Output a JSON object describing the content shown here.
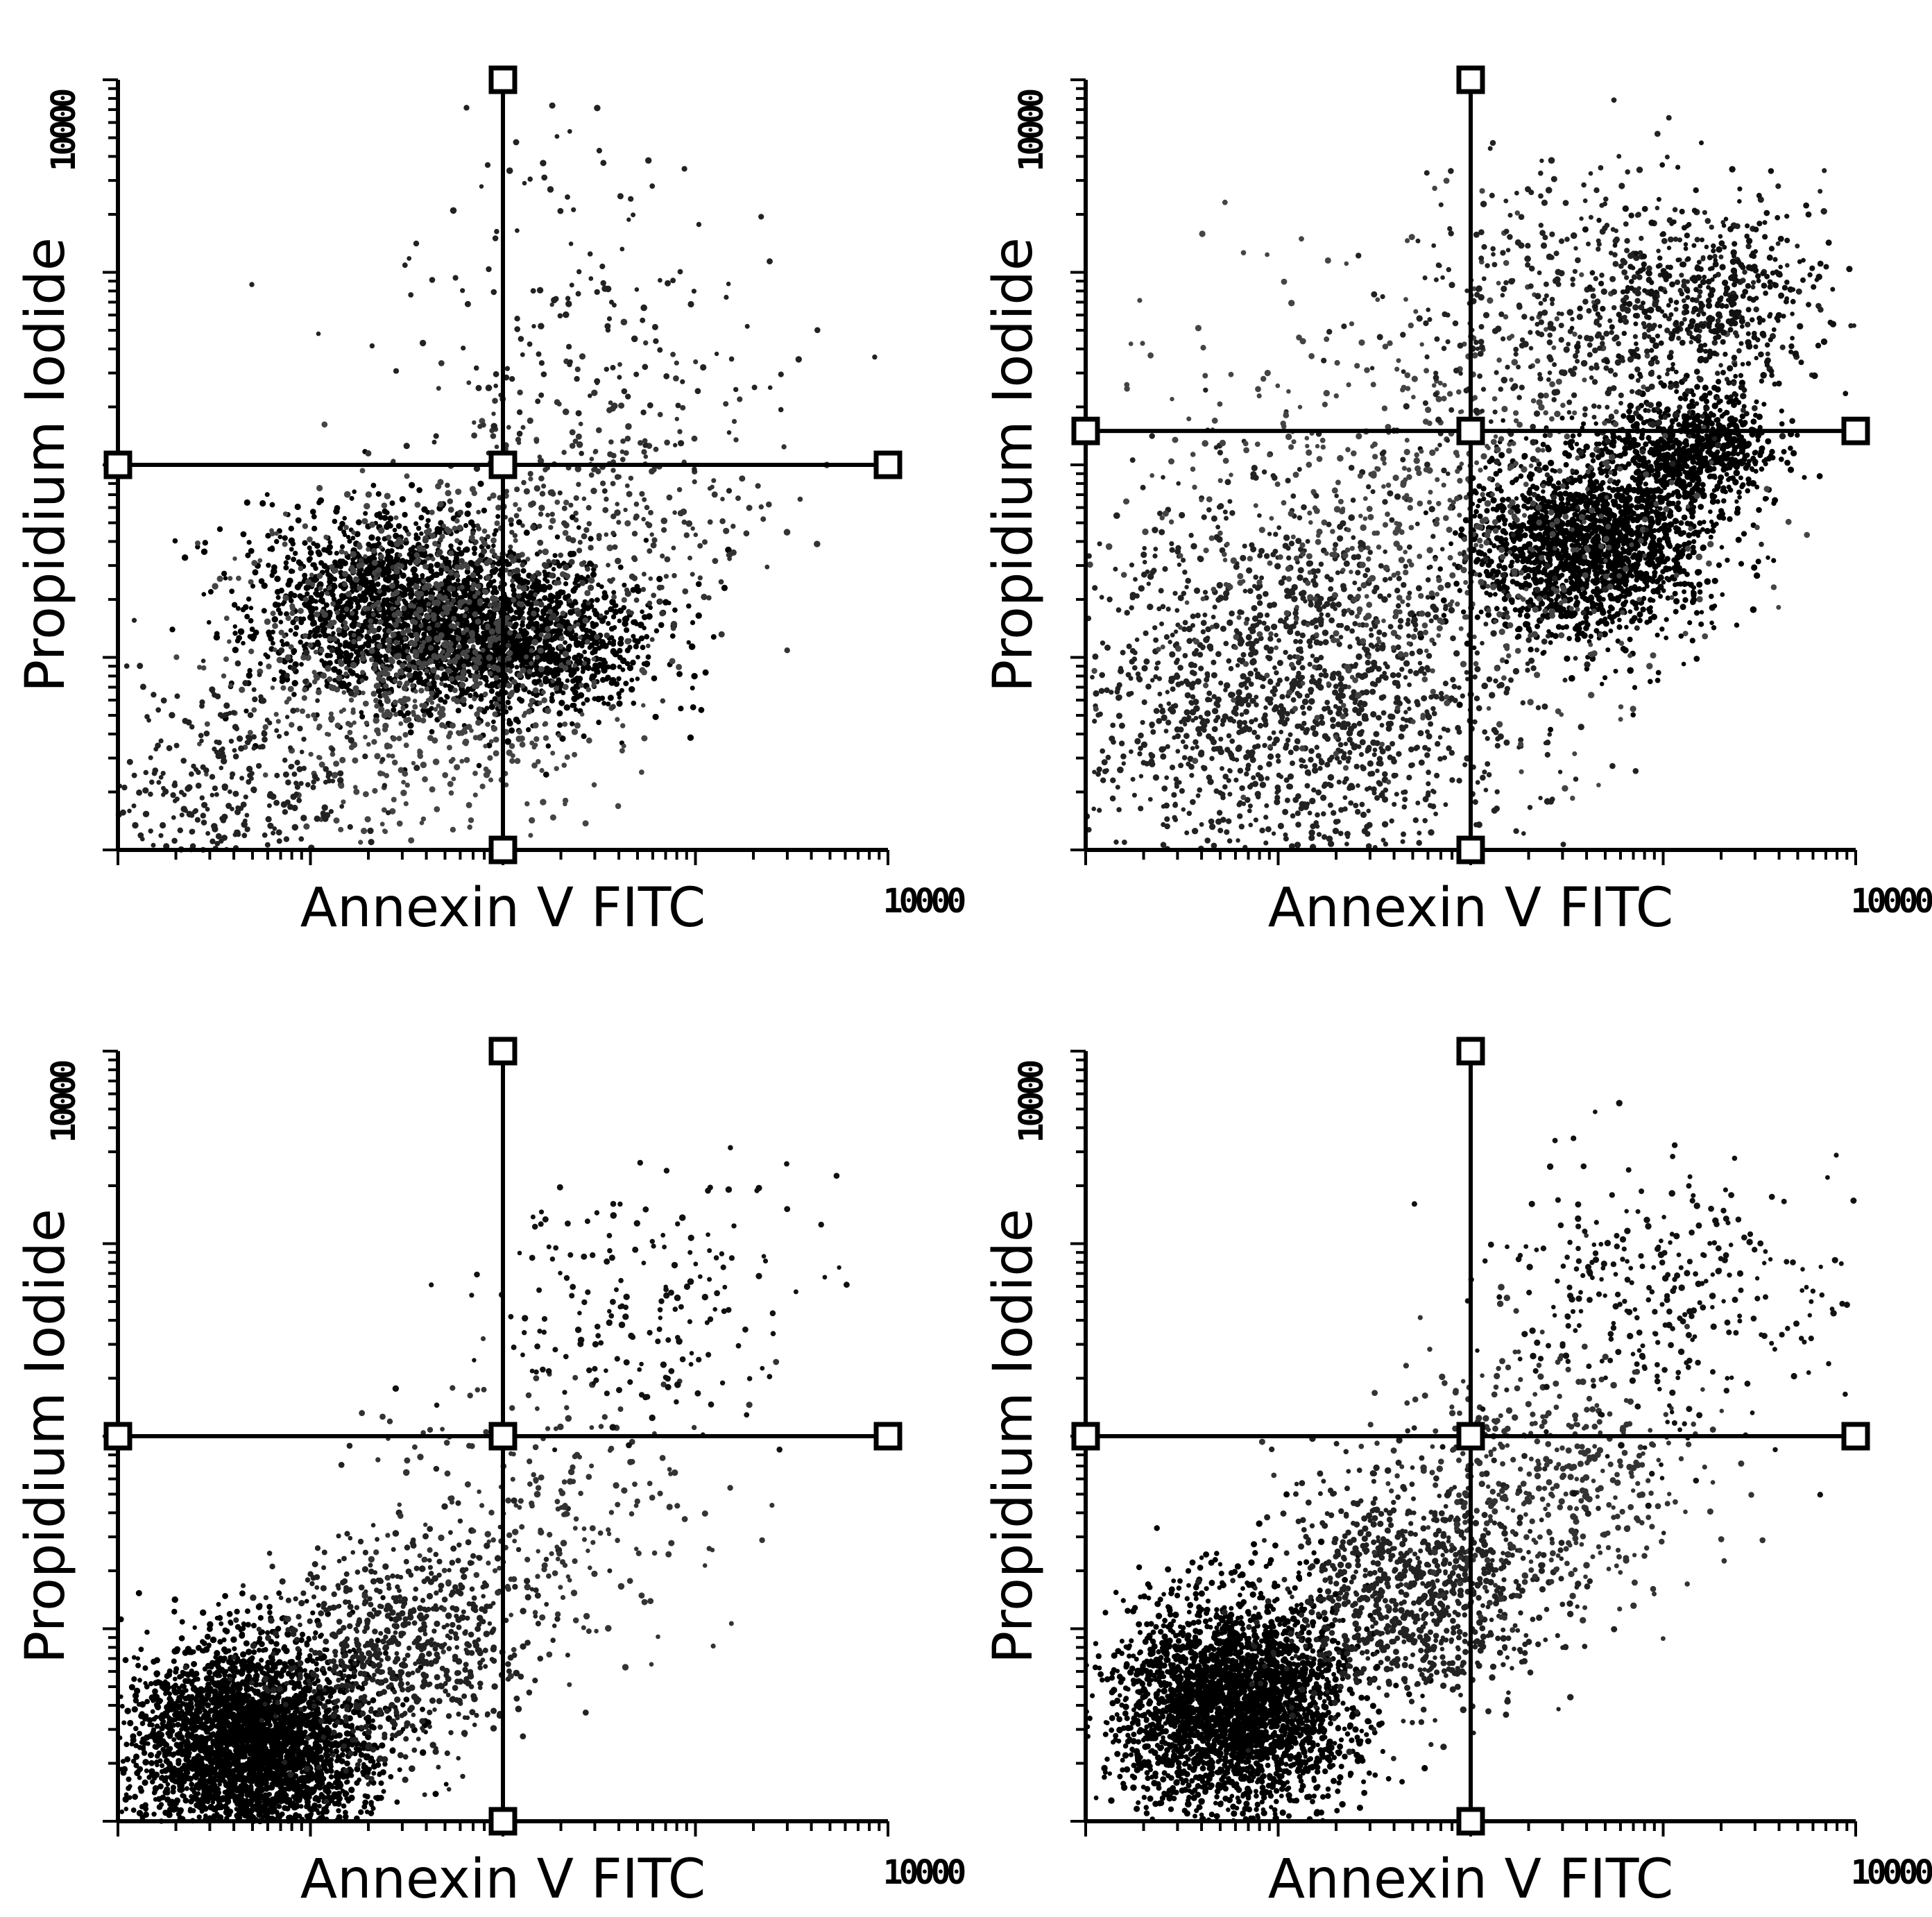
{
  "chart_data": [
    {
      "type": "scatter",
      "panel": "top-left",
      "xlabel": "Annexin V FITC",
      "ylabel": "Propidium Iodide",
      "x_scale": "log",
      "y_scale": "log",
      "xlim": [
        1,
        10000
      ],
      "ylim": [
        1,
        10000
      ],
      "x_tick_label": "10000",
      "y_tick_label": "10000",
      "quadrant_gate": {
        "x": 100,
        "y": 100
      },
      "clusters": [
        {
          "x": 25,
          "y": 18,
          "spread_x": 0.35,
          "spread_y": 0.25,
          "n": 1500,
          "color": "#000000"
        },
        {
          "x": 120,
          "y": 12,
          "spread_x": 0.35,
          "spread_y": 0.2,
          "n": 1300,
          "color": "#000000"
        },
        {
          "x": 40,
          "y": 10,
          "spread_x": 0.45,
          "spread_y": 0.4,
          "n": 900,
          "color": "#444444"
        },
        {
          "x": 4,
          "y": 2,
          "spread_x": 0.35,
          "spread_y": 0.3,
          "n": 350,
          "color": "#222222"
        },
        {
          "x": 300,
          "y": 60,
          "spread_x": 0.45,
          "spread_y": 0.35,
          "n": 350,
          "color": "#333333"
        },
        {
          "x": 250,
          "y": 600,
          "spread_x": 0.6,
          "spread_y": 0.45,
          "n": 160,
          "color": "#222222"
        }
      ]
    },
    {
      "type": "scatter",
      "panel": "top-right",
      "xlabel": "Annexin V FITC",
      "ylabel": "Propidium Iodide",
      "x_scale": "log",
      "y_scale": "log",
      "xlim": [
        1,
        10000
      ],
      "ylim": [
        1,
        10000
      ],
      "x_tick_label": "10000",
      "y_tick_label": "10000",
      "quadrant_gate": {
        "x": 100,
        "y": 150
      },
      "clusters": [
        {
          "x": 400,
          "y": 40,
          "spread_x": 0.3,
          "spread_y": 0.25,
          "n": 1900,
          "color": "#000000"
        },
        {
          "x": 1500,
          "y": 120,
          "spread_x": 0.2,
          "spread_y": 0.15,
          "n": 700,
          "color": "#000000"
        },
        {
          "x": 12,
          "y": 6,
          "spread_x": 0.6,
          "spread_y": 0.55,
          "n": 1700,
          "color": "#222222"
        },
        {
          "x": 60,
          "y": 60,
          "spread_x": 0.7,
          "spread_y": 0.6,
          "n": 700,
          "color": "#444444"
        },
        {
          "x": 500,
          "y": 600,
          "spread_x": 0.5,
          "spread_y": 0.35,
          "n": 550,
          "color": "#222222"
        },
        {
          "x": 1800,
          "y": 700,
          "spread_x": 0.3,
          "spread_y": 0.25,
          "n": 400,
          "color": "#111111"
        }
      ]
    },
    {
      "type": "scatter",
      "panel": "bottom-left",
      "xlabel": "Annexin V FITC",
      "ylabel": "Propidium Iodide",
      "x_scale": "log",
      "y_scale": "log",
      "xlim": [
        1,
        10000
      ],
      "ylim": [
        1,
        10000
      ],
      "x_tick_label": "10000",
      "y_tick_label": "10000",
      "quadrant_gate": {
        "x": 100,
        "y": 100
      },
      "clusters": [
        {
          "x": 5,
          "y": 2.5,
          "spread_x": 0.3,
          "spread_y": 0.28,
          "n": 3400,
          "color": "#000000"
        },
        {
          "x": 30,
          "y": 8,
          "spread_x": 0.35,
          "spread_y": 0.3,
          "n": 750,
          "color": "#222222"
        },
        {
          "x": 200,
          "y": 40,
          "spread_x": 0.45,
          "spread_y": 0.35,
          "n": 230,
          "color": "#333333"
        },
        {
          "x": 500,
          "y": 500,
          "spread_x": 0.45,
          "spread_y": 0.35,
          "n": 190,
          "color": "#111111"
        }
      ]
    },
    {
      "type": "scatter",
      "panel": "bottom-right",
      "xlabel": "Annexin V FITC",
      "ylabel": "Propidium Iodide",
      "x_scale": "log",
      "y_scale": "log",
      "xlim": [
        1,
        10000
      ],
      "ylim": [
        1,
        10000
      ],
      "x_tick_label": "10000",
      "y_tick_label": "10000",
      "quadrant_gate": {
        "x": 100,
        "y": 100
      },
      "clusters": [
        {
          "x": 6,
          "y": 4,
          "spread_x": 0.3,
          "spread_y": 0.28,
          "n": 3000,
          "color": "#000000"
        },
        {
          "x": 50,
          "y": 15,
          "spread_x": 0.35,
          "spread_y": 0.3,
          "n": 950,
          "color": "#222222"
        },
        {
          "x": 250,
          "y": 60,
          "spread_x": 0.4,
          "spread_y": 0.35,
          "n": 450,
          "color": "#333333"
        },
        {
          "x": 900,
          "y": 500,
          "spread_x": 0.45,
          "spread_y": 0.35,
          "n": 320,
          "color": "#111111"
        }
      ]
    }
  ]
}
